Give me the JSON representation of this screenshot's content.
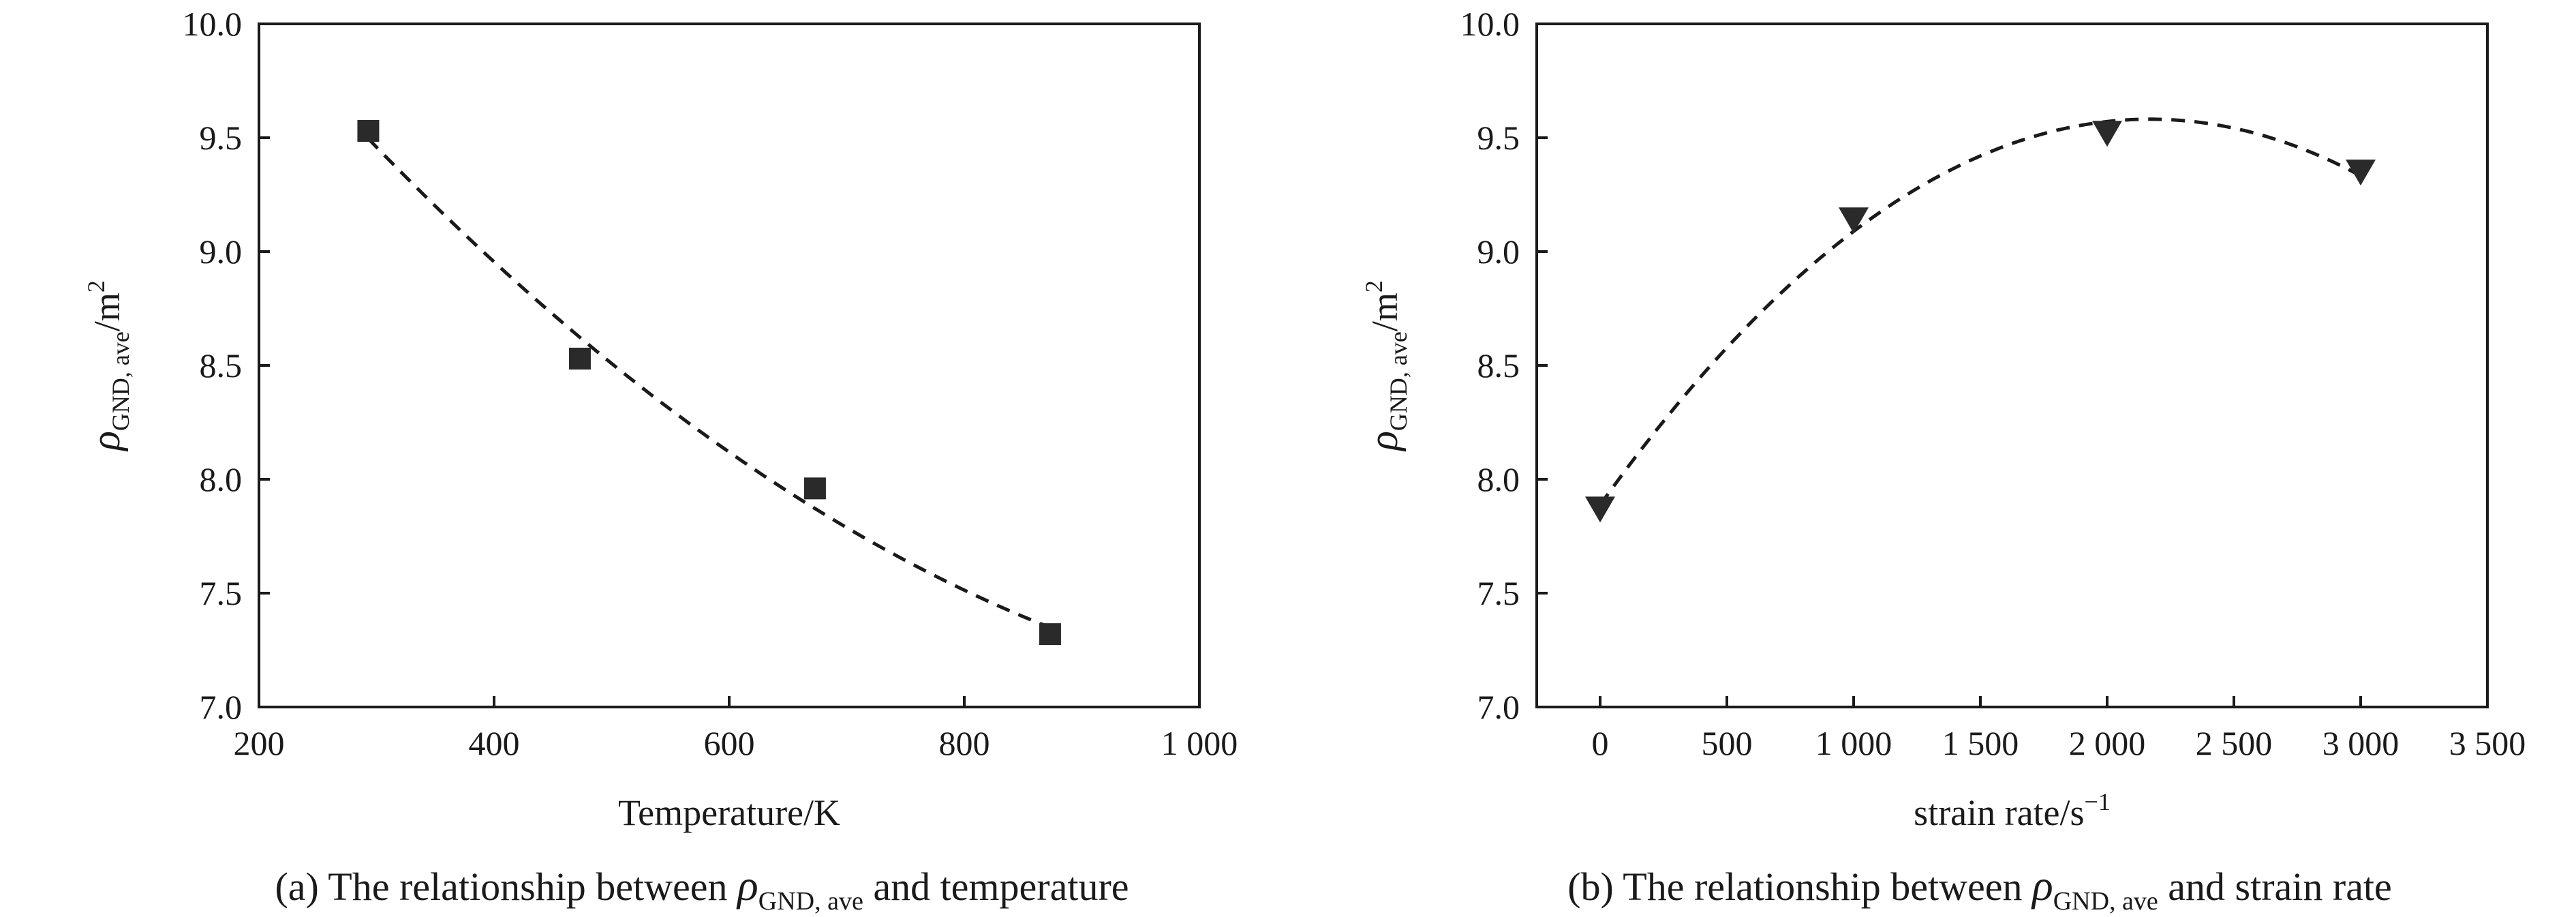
{
  "chart_data": [
    {
      "panel": "a",
      "type": "scatter",
      "title": "",
      "caption": {
        "prefix": "(a) The relationship between ",
        "symbol": "ρ",
        "subscript": "GND, ave",
        "suffix": " and temperature"
      },
      "xlabel": "Temperature/K",
      "ylabel": {
        "symbol": "ρ",
        "subscript": "GND, ave",
        "unit": "/m",
        "superscript": "2"
      },
      "xlim": [
        200,
        1000
      ],
      "ylim": [
        7.0,
        10.0
      ],
      "xticks": [
        200,
        400,
        600,
        800,
        1000
      ],
      "xtick_labels": [
        "200",
        "400",
        "600",
        "800",
        "1 000"
      ],
      "yticks": [
        7.0,
        7.5,
        8.0,
        8.5,
        9.0,
        9.5,
        10.0
      ],
      "ytick_labels": [
        "7.0",
        "7.5",
        "8.0",
        "8.5",
        "9.0",
        "9.5",
        "10.0"
      ],
      "grid": false,
      "legend": "none",
      "marker": "square",
      "series": [
        {
          "x": [
            293,
            473,
            673,
            873
          ],
          "y": [
            9.53,
            8.53,
            7.96,
            7.32
          ],
          "fit": "dashed"
        }
      ]
    },
    {
      "panel": "b",
      "type": "scatter",
      "title": "",
      "caption": {
        "prefix": "(b) The relationship between ",
        "symbol": "ρ",
        "subscript": "GND, ave",
        "suffix": " and strain rate"
      },
      "xlabel": {
        "text": "strain rate/s",
        "superscript": "−1"
      },
      "ylabel": {
        "symbol": "ρ",
        "subscript": "GND, ave",
        "unit": "/m",
        "superscript": "2"
      },
      "xlim": [
        -250,
        3500
      ],
      "ylim": [
        7.0,
        10.0
      ],
      "xticks": [
        0,
        500,
        1000,
        1500,
        2000,
        2500,
        3000,
        3500
      ],
      "xtick_labels": [
        "0",
        "500",
        "1 000",
        "1 500",
        "2 000",
        "2 500",
        "3 000",
        "3 500"
      ],
      "yticks": [
        7.0,
        7.5,
        8.0,
        8.5,
        9.0,
        9.5,
        10.0
      ],
      "ytick_labels": [
        "7.0",
        "7.5",
        "8.0",
        "8.5",
        "9.0",
        "9.5",
        "10.0"
      ],
      "grid": false,
      "legend": "none",
      "marker": "triangle-down",
      "series": [
        {
          "x": [
            0,
            1000,
            2000,
            3000
          ],
          "y": [
            7.87,
            9.14,
            9.52,
            9.35
          ],
          "fit": "dashed"
        }
      ]
    }
  ]
}
